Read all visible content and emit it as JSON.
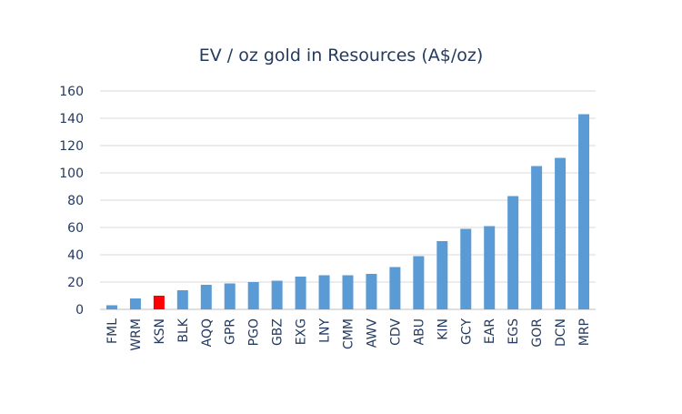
{
  "chart_data": {
    "type": "bar",
    "title": "EV / oz gold in Resources (A$/oz)",
    "xlabel": "",
    "ylabel": "",
    "ylim": [
      0,
      160
    ],
    "yticks": [
      0,
      20,
      40,
      60,
      80,
      100,
      120,
      140,
      160
    ],
    "grid": true,
    "legend": "none",
    "categories": [
      "FML",
      "WRM",
      "KSN",
      "BLK",
      "AQQ",
      "GPR",
      "PGO",
      "GBZ",
      "EXG",
      "LNY",
      "CMM",
      "AWV",
      "CDV",
      "ABU",
      "KIN",
      "GCY",
      "EAR",
      "EGS",
      "GOR",
      "DCN",
      "MRP"
    ],
    "values": [
      3,
      8,
      10,
      14,
      18,
      19,
      20,
      21,
      24,
      25,
      25,
      26,
      31,
      39,
      50,
      59,
      61,
      83,
      105,
      111,
      143
    ],
    "highlight_category": "KSN",
    "colors": {
      "bar": "#5b9bd5",
      "highlight": "#ff0000",
      "grid": "#d9d9d9",
      "axis": "#bfbfbf",
      "text": "#243a5e"
    }
  }
}
